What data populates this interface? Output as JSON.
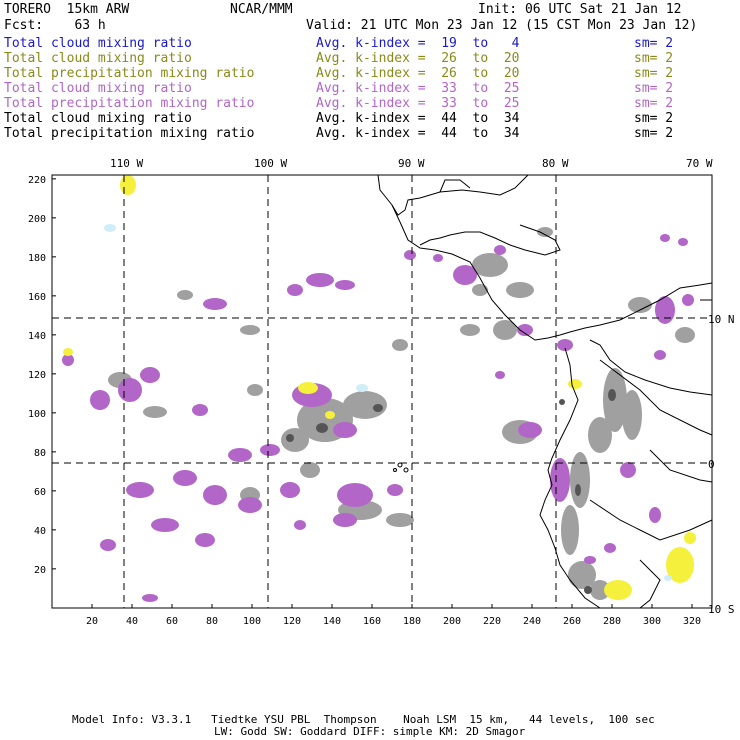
{
  "header": {
    "model": "TORERO  15km ARW",
    "org": "NCAR/MMM",
    "init": "Init: 06 UTC Sat 21 Jan 12",
    "fcst": "Fcst:    63 h",
    "valid": "Valid: 21 UTC Mon 23 Jan 12 (15 CST Mon 23 Jan 12)"
  },
  "legend": [
    {
      "field": "Total cloud mixing ratio",
      "kindex": "Avg. k-index =  19  to   4",
      "sm": "sm= 2",
      "color": "#1a1acc"
    },
    {
      "field": "Total cloud mixing ratio",
      "kindex": "Avg. k-index =  26  to  20",
      "sm": "sm= 2",
      "color": "#8a8a1a"
    },
    {
      "field": "Total precipitation mixing ratio",
      "kindex": "Avg. k-index =  26  to  20",
      "sm": "sm= 2",
      "color": "#8a8a1a"
    },
    {
      "field": "Total cloud mixing ratio",
      "kindex": "Avg. k-index =  33  to  25",
      "sm": "sm= 2",
      "color": "#b266c8"
    },
    {
      "field": "Total precipitation mixing ratio",
      "kindex": "Avg. k-index =  33  to  25",
      "sm": "sm= 2",
      "color": "#b266c8"
    },
    {
      "field": "Total cloud mixing ratio",
      "kindex": "Avg. k-index =  44  to  34",
      "sm": "sm= 2",
      "color": "#000000"
    },
    {
      "field": "Total precipitation mixing ratio",
      "kindex": "Avg. k-index =  44  to  34",
      "sm": "sm= 2",
      "color": "#000000"
    }
  ],
  "map": {
    "x_ticks": [
      "20",
      "40",
      "60",
      "80",
      "100",
      "120",
      "140",
      "160",
      "180",
      "200",
      "220",
      "240",
      "260",
      "280",
      "300",
      "320"
    ],
    "y_ticks": [
      "20",
      "40",
      "60",
      "80",
      "100",
      "120",
      "140",
      "160",
      "180",
      "200",
      "220"
    ],
    "lon_labels": [
      "110 W",
      "100 W",
      "90 W",
      "80 W",
      "70 W"
    ],
    "lat_labels": [
      "10 N",
      "0",
      "10 S"
    ],
    "colors": {
      "purple": "#b266c8",
      "gray": "#a0a0a0",
      "yellow": "#f5f03c",
      "cyan": "#cfeef8"
    }
  },
  "footer": {
    "line1": "Model Info: V3.3.1   Tiedtke YSU PBL  Thompson    Noah LSM  15 km,   44 levels,  100 sec",
    "line2": "LW: Godd SW: Goddard DIFF: simple KM: 2D Smagor"
  }
}
